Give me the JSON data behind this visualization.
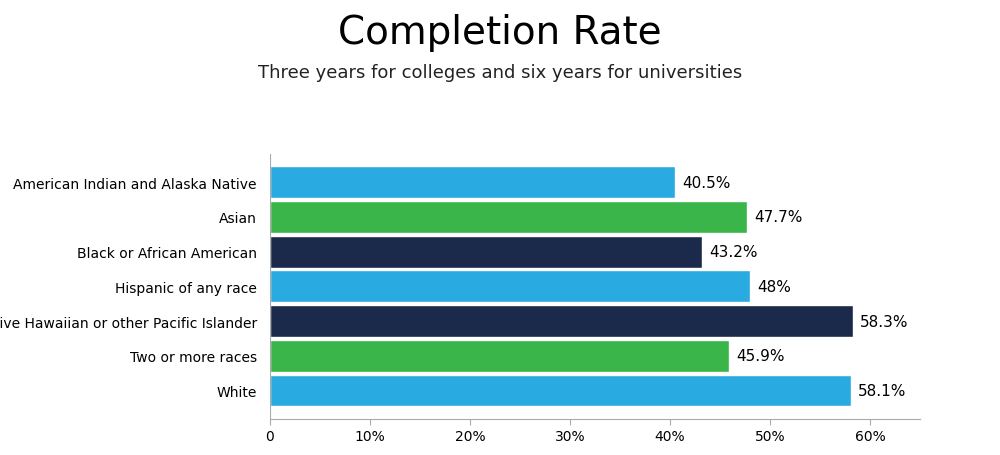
{
  "title": "Completion Rate",
  "subtitle": "Three years for colleges and six years for universities",
  "categories": [
    "American Indian and Alaska Native",
    "Asian",
    "Black or African American",
    "Hispanic of any race",
    "Native Hawaiian or other Pacific Islander",
    "Two or more races",
    "White"
  ],
  "values": [
    40.5,
    47.7,
    43.2,
    48.0,
    58.3,
    45.9,
    58.1
  ],
  "labels": [
    "40.5%",
    "47.7%",
    "43.2%",
    "48%",
    "58.3%",
    "45.9%",
    "58.1%"
  ],
  "colors": [
    "#29ABE2",
    "#39B54A",
    "#1B2A4A",
    "#29ABE2",
    "#1B2A4A",
    "#39B54A",
    "#29ABE2"
  ],
  "xlim": [
    0,
    65
  ],
  "xticks": [
    0,
    10,
    20,
    30,
    40,
    50,
    60
  ],
  "xtick_labels": [
    "0",
    "10%",
    "20%",
    "30%",
    "40%",
    "50%",
    "60%"
  ],
  "background_color": "#FFFFFF",
  "title_fontsize": 28,
  "subtitle_fontsize": 13,
  "bar_height": 0.92,
  "label_fontsize": 11
}
